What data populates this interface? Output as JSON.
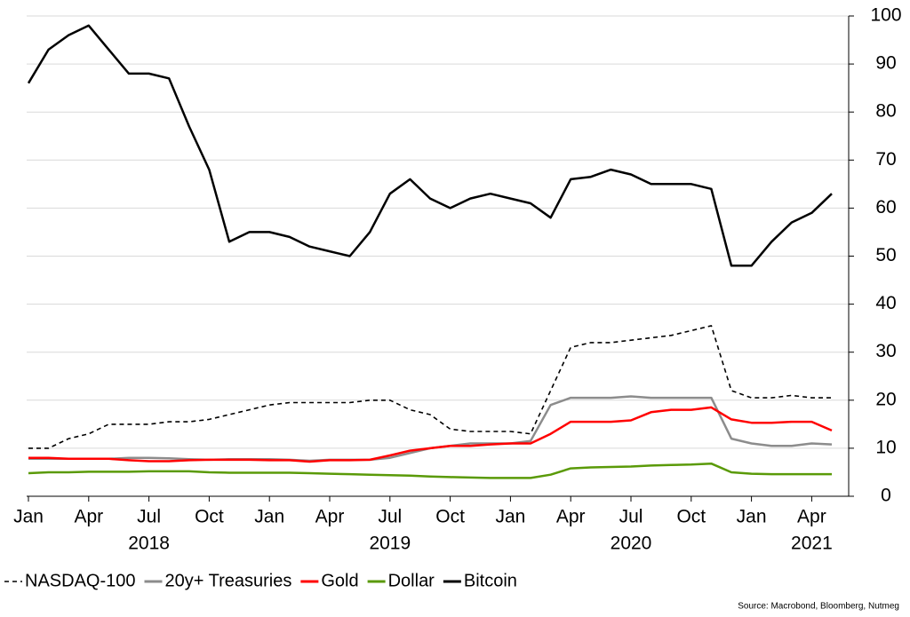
{
  "chart_data": {
    "type": "line",
    "x": [
      "2018-01",
      "2018-02",
      "2018-03",
      "2018-04",
      "2018-05",
      "2018-06",
      "2018-07",
      "2018-08",
      "2018-09",
      "2018-10",
      "2018-11",
      "2018-12",
      "2019-01",
      "2019-02",
      "2019-03",
      "2019-04",
      "2019-05",
      "2019-06",
      "2019-07",
      "2019-08",
      "2019-09",
      "2019-10",
      "2019-11",
      "2019-12",
      "2020-01",
      "2020-02",
      "2020-03",
      "2020-04",
      "2020-05",
      "2020-06",
      "2020-07",
      "2020-08",
      "2020-09",
      "2020-10",
      "2020-11",
      "2020-12",
      "2021-01",
      "2021-02",
      "2021-03",
      "2021-04",
      "2021-05"
    ],
    "xticks": [
      {
        "value": "2018-01",
        "label": "Jan"
      },
      {
        "value": "2018-04",
        "label": "Apr"
      },
      {
        "value": "2018-07",
        "label": "Jul"
      },
      {
        "value": "2018-10",
        "label": "Oct"
      },
      {
        "value": "2019-01",
        "label": "Jan"
      },
      {
        "value": "2019-04",
        "label": "Apr"
      },
      {
        "value": "2019-07",
        "label": "Jul"
      },
      {
        "value": "2019-10",
        "label": "Oct"
      },
      {
        "value": "2020-01",
        "label": "Jan"
      },
      {
        "value": "2020-04",
        "label": "Apr"
      },
      {
        "value": "2020-07",
        "label": "Jul"
      },
      {
        "value": "2020-10",
        "label": "Oct"
      },
      {
        "value": "2021-01",
        "label": "Jan"
      },
      {
        "value": "2021-04",
        "label": "Apr"
      }
    ],
    "year_labels": [
      {
        "value": "2018-07",
        "label": "2018"
      },
      {
        "value": "2019-07",
        "label": "2019"
      },
      {
        "value": "2020-07",
        "label": "2020"
      },
      {
        "value": "2021-04",
        "label": "2021"
      }
    ],
    "ylim": [
      0,
      100
    ],
    "yticks": [
      0,
      10,
      20,
      30,
      40,
      50,
      60,
      70,
      80,
      90,
      100
    ],
    "grid": true,
    "y_axis_side": "right",
    "legend": "bottom",
    "source": "Source: Macrobond, Bloomberg, Nutmeg",
    "series": [
      {
        "name": "NASDAQ-100",
        "color": "#000000",
        "dashed": true,
        "values": [
          10,
          10,
          12,
          13,
          15,
          15,
          15,
          15.5,
          15.5,
          16,
          17,
          18,
          19,
          19.5,
          19.5,
          19.5,
          19.5,
          20,
          20,
          18,
          17,
          14,
          13.5,
          13.5,
          13.5,
          13,
          22,
          31,
          32,
          32,
          32.5,
          33,
          33.5,
          34.5,
          35.5,
          22,
          20.5,
          20.5,
          21,
          20.5,
          20.5
        ]
      },
      {
        "name": "20y+ Treasuries",
        "color": "#8c8c8c",
        "values": [
          7.8,
          7.8,
          7.8,
          7.8,
          7.8,
          8,
          8,
          7.9,
          7.7,
          7.6,
          7.7,
          7.7,
          7.7,
          7.6,
          7.4,
          7.6,
          7.6,
          7.6,
          8,
          9,
          10,
          10.5,
          11,
          11,
          11,
          11.5,
          19,
          20.5,
          20.5,
          20.5,
          20.8,
          20.5,
          20.5,
          20.5,
          20.5,
          12,
          11,
          10.5,
          10.5,
          11,
          10.8
        ]
      },
      {
        "name": "Gold",
        "color": "#ff0000",
        "values": [
          8,
          8,
          7.8,
          7.8,
          7.8,
          7.5,
          7.3,
          7.3,
          7.5,
          7.6,
          7.6,
          7.6,
          7.5,
          7.5,
          7.2,
          7.5,
          7.5,
          7.6,
          8.5,
          9.5,
          10,
          10.5,
          10.5,
          10.8,
          11,
          11,
          13,
          15.5,
          15.5,
          15.5,
          15.8,
          17.5,
          18,
          18,
          18.5,
          16,
          15.3,
          15.3,
          15.5,
          15.5,
          13.7
        ]
      },
      {
        "name": "Dollar",
        "color": "#5a9a08",
        "values": [
          4.8,
          5,
          5,
          5.1,
          5.1,
          5.1,
          5.2,
          5.2,
          5.2,
          5,
          4.9,
          4.9,
          4.9,
          4.9,
          4.8,
          4.7,
          4.6,
          4.5,
          4.4,
          4.3,
          4.1,
          4,
          3.9,
          3.8,
          3.8,
          3.8,
          4.5,
          5.8,
          6,
          6.1,
          6.2,
          6.4,
          6.5,
          6.6,
          6.8,
          5,
          4.7,
          4.6,
          4.6,
          4.6,
          4.6
        ]
      },
      {
        "name": "Bitcoin",
        "color": "#000000",
        "values": [
          86,
          93,
          96,
          98,
          93,
          88,
          88,
          87,
          77,
          68,
          53,
          55,
          55,
          54,
          52,
          51,
          50,
          55,
          63,
          66,
          62,
          60,
          62,
          63,
          62,
          61,
          58,
          66,
          66.5,
          68,
          67,
          65,
          65,
          65,
          64,
          48,
          48,
          53,
          57,
          59,
          63
        ]
      }
    ]
  }
}
